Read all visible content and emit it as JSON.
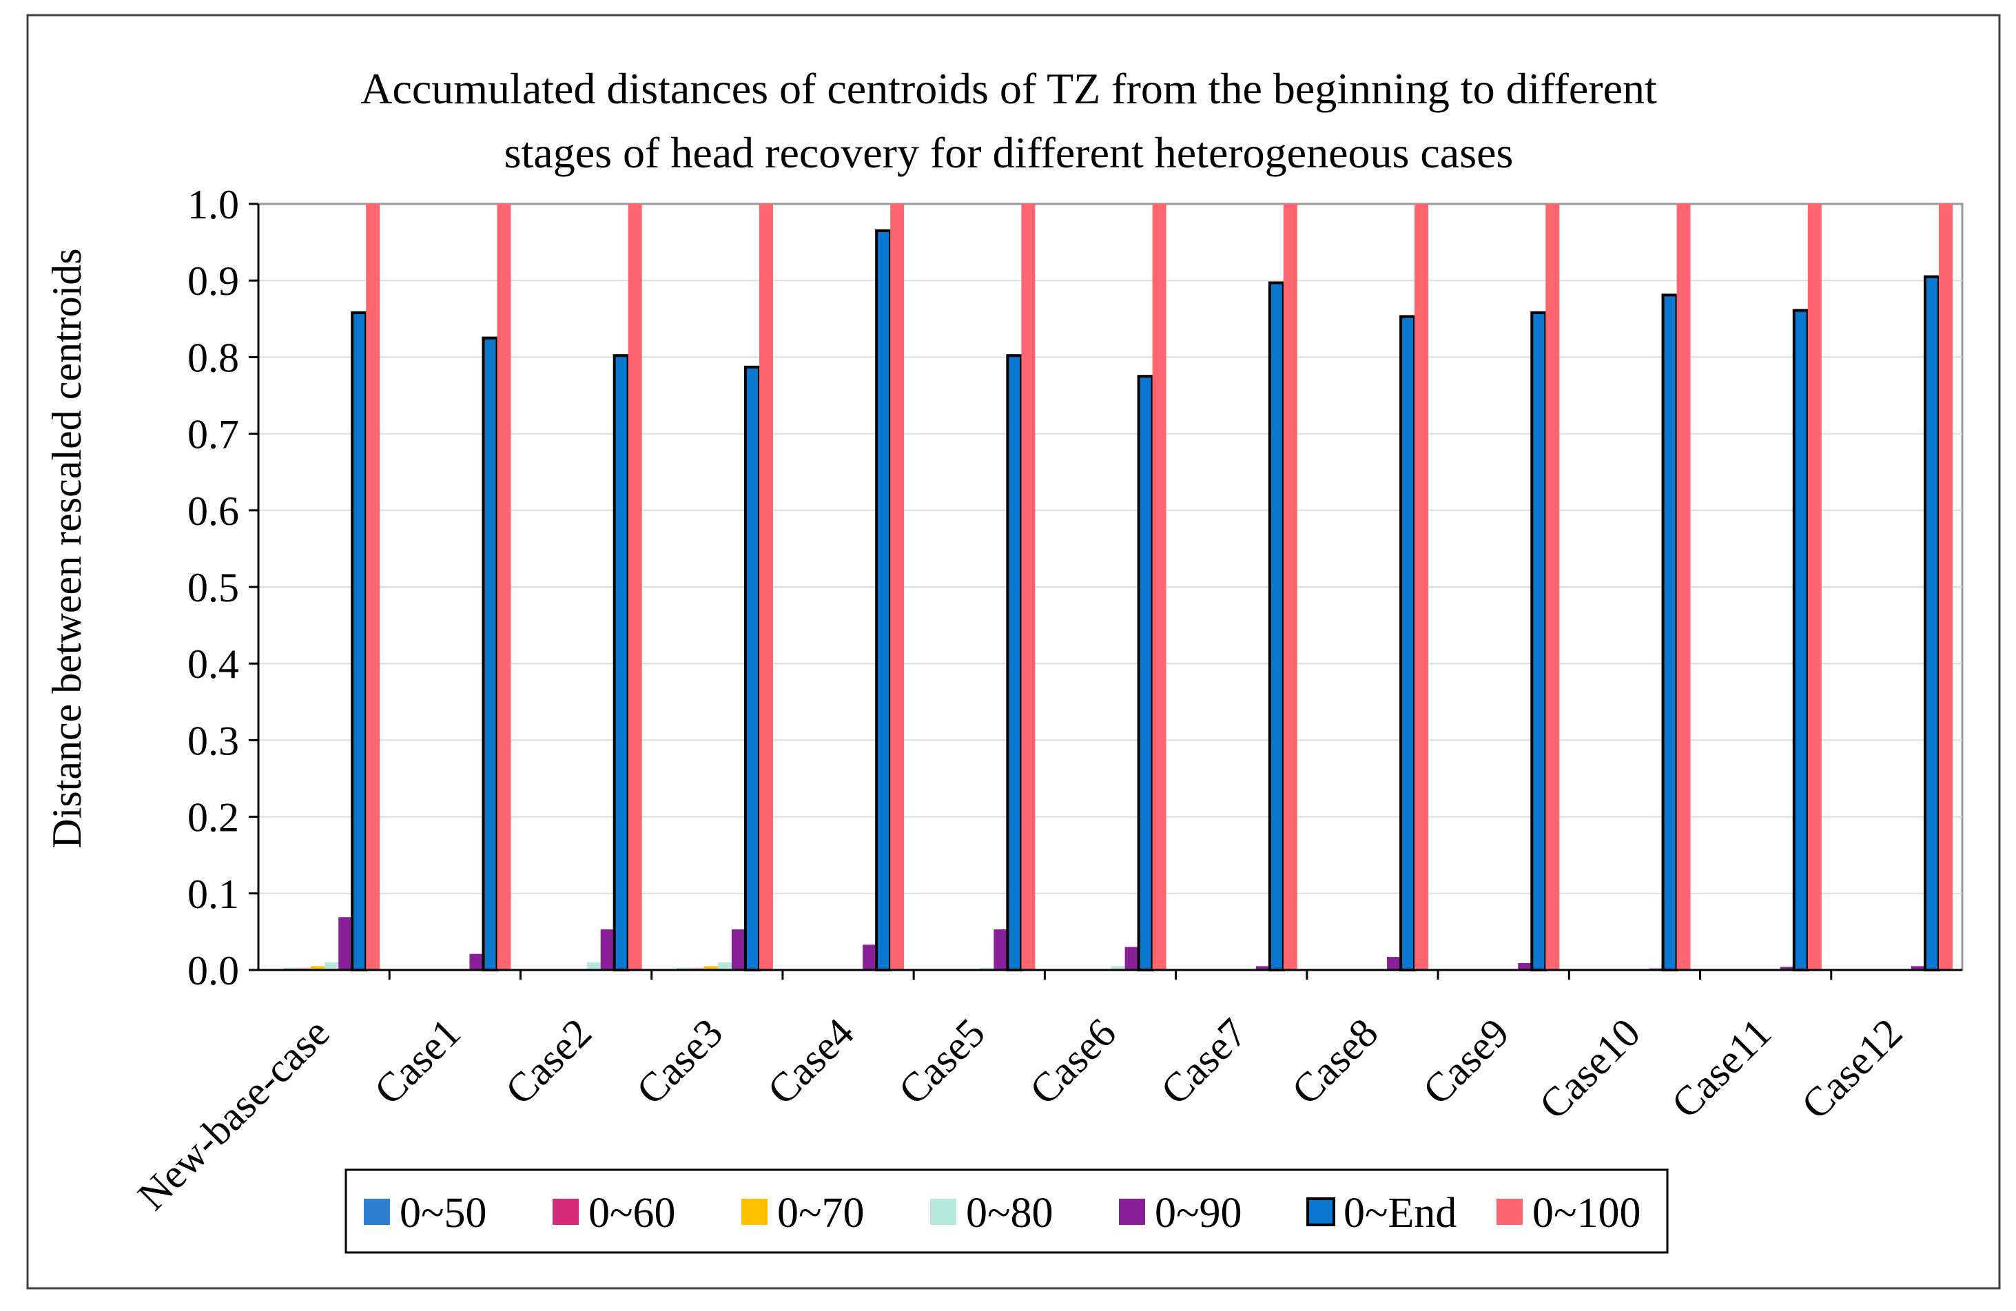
{
  "chart_data": {
    "type": "bar",
    "title_lines": [
      "Accumulated distances of centroids of TZ from the beginning to different",
      "stages of head recovery for different heterogeneous cases"
    ],
    "xlabel": "",
    "ylabel": "Distance between rescaled centroids",
    "ylim": [
      0,
      1.0
    ],
    "yticks": [
      "0.0",
      "0.1",
      "0.2",
      "0.3",
      "0.4",
      "0.5",
      "0.6",
      "0.7",
      "0.8",
      "0.9",
      "1.0"
    ],
    "grid": true,
    "legend_position": "bottom",
    "categories": [
      "New-base-case",
      "Case1",
      "Case2",
      "Case3",
      "Case4",
      "Case5",
      "Case6",
      "Case7",
      "Case8",
      "Case9",
      "Case10",
      "Case11",
      "Case12"
    ],
    "series": [
      {
        "name": "0~50",
        "color": "#2e7fd0",
        "values": [
          0.002,
          0,
          0,
          0.002,
          0,
          0,
          0,
          0,
          0,
          0,
          0,
          0,
          0
        ]
      },
      {
        "name": "0~60",
        "color": "#d42a7a",
        "values": [
          0.002,
          0,
          0,
          0.002,
          0,
          0,
          0,
          0,
          0,
          0,
          0,
          0,
          0
        ]
      },
      {
        "name": "0~70",
        "color": "#ffc000",
        "values": [
          0.005,
          0,
          0,
          0.005,
          0,
          0,
          0,
          0,
          0,
          0,
          0,
          0,
          0
        ]
      },
      {
        "name": "0~80",
        "color": "#b6e8dc",
        "values": [
          0.01,
          0.001,
          0.01,
          0.01,
          0.001,
          0.003,
          0.005,
          0.001,
          0.001,
          0.001,
          0,
          0.001,
          0.001
        ]
      },
      {
        "name": "0~90",
        "color": "#8a1f9a",
        "values": [
          0.069,
          0.021,
          0.053,
          0.053,
          0.033,
          0.053,
          0.03,
          0.005,
          0.017,
          0.009,
          0.002,
          0.004,
          0.005
        ]
      },
      {
        "name": "0~End",
        "color": "#0a78d0",
        "values": [
          0.858,
          0.825,
          0.802,
          0.787,
          0.965,
          0.802,
          0.775,
          0.897,
          0.853,
          0.858,
          0.881,
          0.861,
          0.905
        ]
      },
      {
        "name": "0~100",
        "color": "#ff6670",
        "values": [
          1.0,
          1.0,
          1.0,
          1.0,
          1.0,
          1.0,
          1.0,
          1.0,
          1.0,
          1.0,
          1.0,
          1.0,
          1.0
        ]
      }
    ]
  }
}
